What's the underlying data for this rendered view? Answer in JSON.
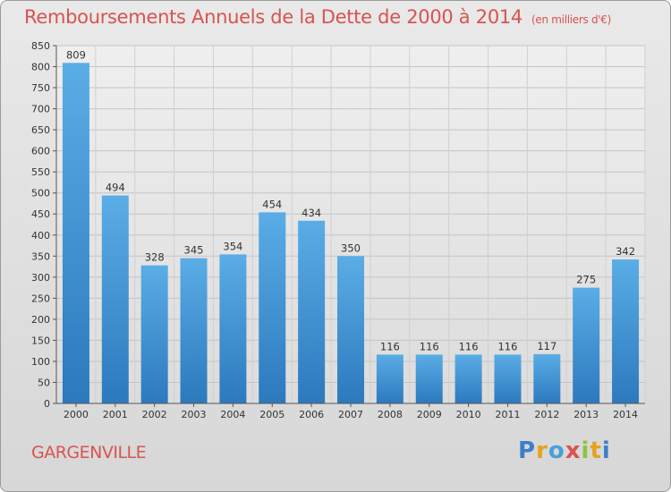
{
  "chart_data": {
    "type": "bar",
    "title": "Remboursements Annuels de la Dette de 2000 à 2014",
    "unit_note": "(en milliers d'€)",
    "categories": [
      "2000",
      "2001",
      "2002",
      "2003",
      "2004",
      "2005",
      "2006",
      "2007",
      "2008",
      "2009",
      "2010",
      "2011",
      "2012",
      "2013",
      "2014"
    ],
    "values": [
      809,
      494,
      328,
      345,
      354,
      454,
      434,
      350,
      116,
      116,
      116,
      116,
      117,
      275,
      342
    ],
    "ylim": [
      0,
      850
    ],
    "yticks": [
      0,
      50,
      100,
      150,
      200,
      250,
      300,
      350,
      400,
      450,
      500,
      550,
      600,
      650,
      700,
      750,
      800,
      850
    ],
    "grid": true,
    "bar_color": "#3b8fd6"
  },
  "footer": {
    "city": "GARGENVILLE",
    "logo_letters": [
      {
        "ch": "P",
        "color": "#3d7fc9"
      },
      {
        "ch": "r",
        "color": "#e8a21d"
      },
      {
        "ch": "o",
        "color": "#4aa0d8"
      },
      {
        "ch": "x",
        "color": "#d9534f"
      },
      {
        "ch": "i",
        "color": "#8cc43f"
      },
      {
        "ch": "t",
        "color": "#e8a21d"
      },
      {
        "ch": "i",
        "color": "#3d7fc9"
      }
    ]
  }
}
